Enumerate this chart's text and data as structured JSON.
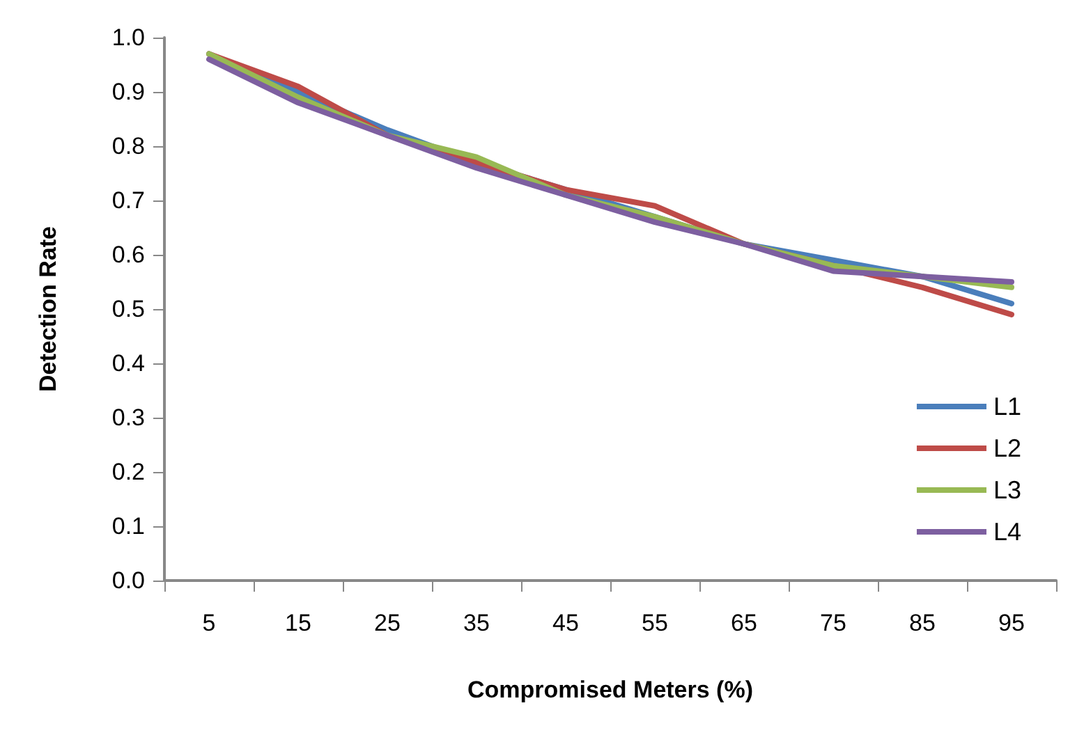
{
  "chart_data": {
    "type": "line",
    "xlabel": "Compromised Meters (%)",
    "ylabel": "Detection Rate",
    "categories": [
      "5",
      "15",
      "25",
      "35",
      "45",
      "55",
      "65",
      "75",
      "85",
      "95"
    ],
    "series": [
      {
        "name": "L1",
        "color": "#4a7ebb",
        "values": [
          0.97,
          0.9,
          0.83,
          0.77,
          0.72,
          0.67,
          0.62,
          0.59,
          0.56,
          0.51
        ]
      },
      {
        "name": "L2",
        "color": "#be4b48",
        "values": [
          0.97,
          0.91,
          0.82,
          0.77,
          0.72,
          0.69,
          0.62,
          0.58,
          0.54,
          0.49
        ]
      },
      {
        "name": "L3",
        "color": "#98b954",
        "values": [
          0.97,
          0.89,
          0.82,
          0.78,
          0.71,
          0.67,
          0.62,
          0.58,
          0.56,
          0.54
        ]
      },
      {
        "name": "L4",
        "color": "#7d5fa0",
        "values": [
          0.96,
          0.88,
          0.82,
          0.76,
          0.71,
          0.66,
          0.62,
          0.57,
          0.56,
          0.55
        ]
      }
    ],
    "ylim": [
      0,
      1
    ],
    "yticks": [
      {
        "value": 0,
        "label": "0.0"
      },
      0.1,
      0.2,
      0.3,
      0.4,
      0.5,
      0.6,
      0.7,
      0.8,
      0.9,
      {
        "value": 1,
        "label": "1.0"
      }
    ],
    "grid": false,
    "legend": "right",
    "marker": "none",
    "line_style": "solid"
  }
}
